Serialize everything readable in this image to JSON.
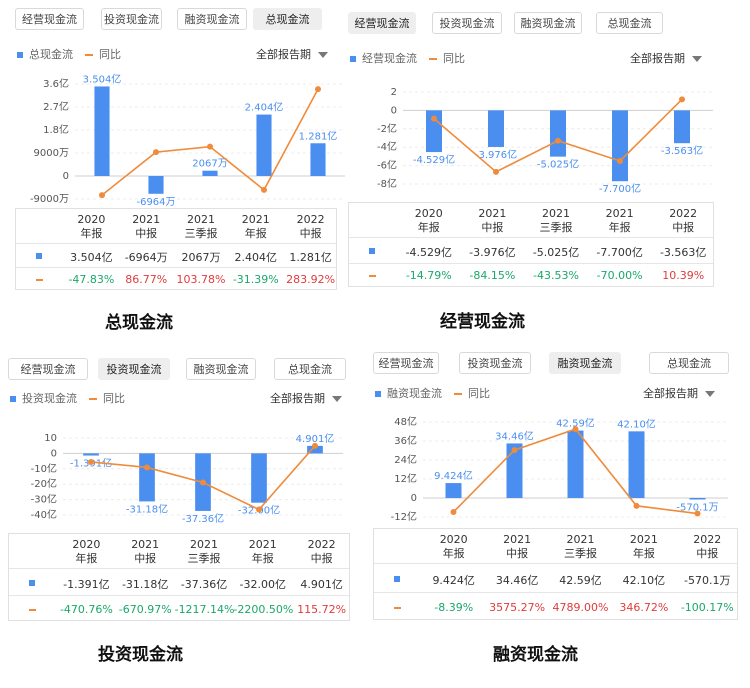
{
  "colors": {
    "bar": "#4a8ff0",
    "line": "#ef8b3a",
    "up": "#e23b3b",
    "down": "#1aa86b"
  },
  "chart_data": [
    {
      "type": "bar",
      "tabs": [
        "经营现金流",
        "投资现金流",
        "融资现金流",
        "总现金流"
      ],
      "active_tab": 3,
      "legend_bar": "总现金流",
      "legend_line": "同比",
      "period": "全部报告期",
      "categories": [
        [
          "2020",
          "年报"
        ],
        [
          "2021",
          "中报"
        ],
        [
          "2021",
          "三季报"
        ],
        [
          "2021",
          "年报"
        ],
        [
          "2022",
          "中报"
        ]
      ],
      "y_ticks": [
        "3.6亿",
        "2.7亿",
        "1.8亿",
        "9000万",
        "0",
        "-9000万"
      ],
      "y_tick_values": [
        3.6,
        2.7,
        1.8,
        0.9,
        0,
        -0.9
      ],
      "ylim": [
        -0.9,
        3.6
      ],
      "series": [
        {
          "values": [
            3.504,
            -0.6964,
            0.2067,
            2.404,
            1.281
          ]
        }
      ],
      "yoy_line": [
        -47.83,
        86.77,
        103.78,
        -31.39,
        283.92
      ],
      "yoy_range": [
        -60,
        300
      ],
      "value_labels": [
        "3.504亿",
        "-6964万",
        "2067万",
        "2.404亿",
        "1.281亿"
      ],
      "yoy_labels": [
        "-47.83%",
        "86.77%",
        "103.78%",
        "-31.39%",
        "283.92%"
      ],
      "caption": "总现金流"
    },
    {
      "type": "bar",
      "tabs": [
        "经营现金流",
        "投资现金流",
        "融资现金流",
        "总现金流"
      ],
      "active_tab": 0,
      "legend_bar": "经营现金流",
      "legend_line": "同比",
      "period": "全部报告期",
      "categories": [
        [
          "2020",
          "年报"
        ],
        [
          "2021",
          "中报"
        ],
        [
          "2021",
          "三季报"
        ],
        [
          "2021",
          "年报"
        ],
        [
          "2022",
          "中报"
        ]
      ],
      "y_ticks": [
        "2",
        "0",
        "-2亿",
        "-4亿",
        "-6亿",
        "-8亿"
      ],
      "y_tick_values": [
        2,
        0,
        -2,
        -4,
        -6,
        -8
      ],
      "ylim": [
        -8,
        2
      ],
      "series": [
        {
          "values": [
            -4.529,
            -3.976,
            -5.025,
            -7.7,
            -3.563
          ]
        }
      ],
      "yoy_line": [
        -14.79,
        -84.15,
        -43.53,
        -70.0,
        10.39
      ],
      "yoy_range": [
        -100,
        20
      ],
      "value_labels": [
        "-4.529亿",
        "-3.976亿",
        "-5.025亿",
        "-7.700亿",
        "-3.563亿"
      ],
      "yoy_labels": [
        "-14.79%",
        "-84.15%",
        "-43.53%",
        "-70.00%",
        "10.39%"
      ],
      "caption": "经营现金流"
    },
    {
      "type": "bar",
      "tabs": [
        "经营现金流",
        "投资现金流",
        "融资现金流",
        "总现金流"
      ],
      "active_tab": 1,
      "legend_bar": "投资现金流",
      "legend_line": "同比",
      "period": "全部报告期",
      "categories": [
        [
          "2020",
          "年报"
        ],
        [
          "2021",
          "中报"
        ],
        [
          "2021",
          "三季报"
        ],
        [
          "2021",
          "年报"
        ],
        [
          "2022",
          "中报"
        ]
      ],
      "y_ticks": [
        "10",
        "0",
        "-10亿",
        "-20亿",
        "-30亿",
        "-40亿"
      ],
      "y_tick_values": [
        10,
        0,
        -10,
        -20,
        -30,
        -40
      ],
      "ylim": [
        -40,
        10
      ],
      "series": [
        {
          "values": [
            -1.391,
            -31.18,
            -37.36,
            -32.0,
            4.901
          ]
        }
      ],
      "yoy_line": [
        -470.76,
        -670.97,
        -1217.14,
        -2200.5,
        115.72
      ],
      "yoy_range": [
        -2400,
        400
      ],
      "value_labels": [
        "-1.391亿",
        "-31.18亿",
        "-37.36亿",
        "-32.00亿",
        "4.901亿"
      ],
      "yoy_labels": [
        "-470.76%",
        "-670.97%",
        "-1217.14%",
        "-2200.50%",
        "115.72%"
      ],
      "caption": "投资现金流"
    },
    {
      "type": "bar",
      "tabs": [
        "经营现金流",
        "投资现金流",
        "融资现金流",
        "总现金流"
      ],
      "active_tab": 2,
      "legend_bar": "融资现金流",
      "legend_line": "同比",
      "period": "全部报告期",
      "categories": [
        [
          "2020",
          "年报"
        ],
        [
          "2021",
          "中报"
        ],
        [
          "2021",
          "三季报"
        ],
        [
          "2021",
          "年报"
        ],
        [
          "2022",
          "中报"
        ]
      ],
      "y_ticks": [
        "48亿",
        "36亿",
        "24亿",
        "12亿",
        "0",
        "-12亿"
      ],
      "y_tick_values": [
        48,
        36,
        24,
        12,
        0,
        -12
      ],
      "ylim": [
        -12,
        48
      ],
      "series": [
        {
          "values": [
            9.424,
            34.46,
            42.59,
            42.1,
            -0.05701
          ]
        }
      ],
      "yoy_line": [
        -8.39,
        3575.27,
        4789.0,
        346.72,
        -100.17
      ],
      "yoy_range": [
        -300,
        5200
      ],
      "value_labels": [
        "9.424亿",
        "34.46亿",
        "42.59亿",
        "42.10亿",
        "-570.1万"
      ],
      "yoy_labels": [
        "-8.39%",
        "3575.27%",
        "4789.00%",
        "346.72%",
        "-100.17%"
      ],
      "caption": "融资现金流"
    }
  ]
}
